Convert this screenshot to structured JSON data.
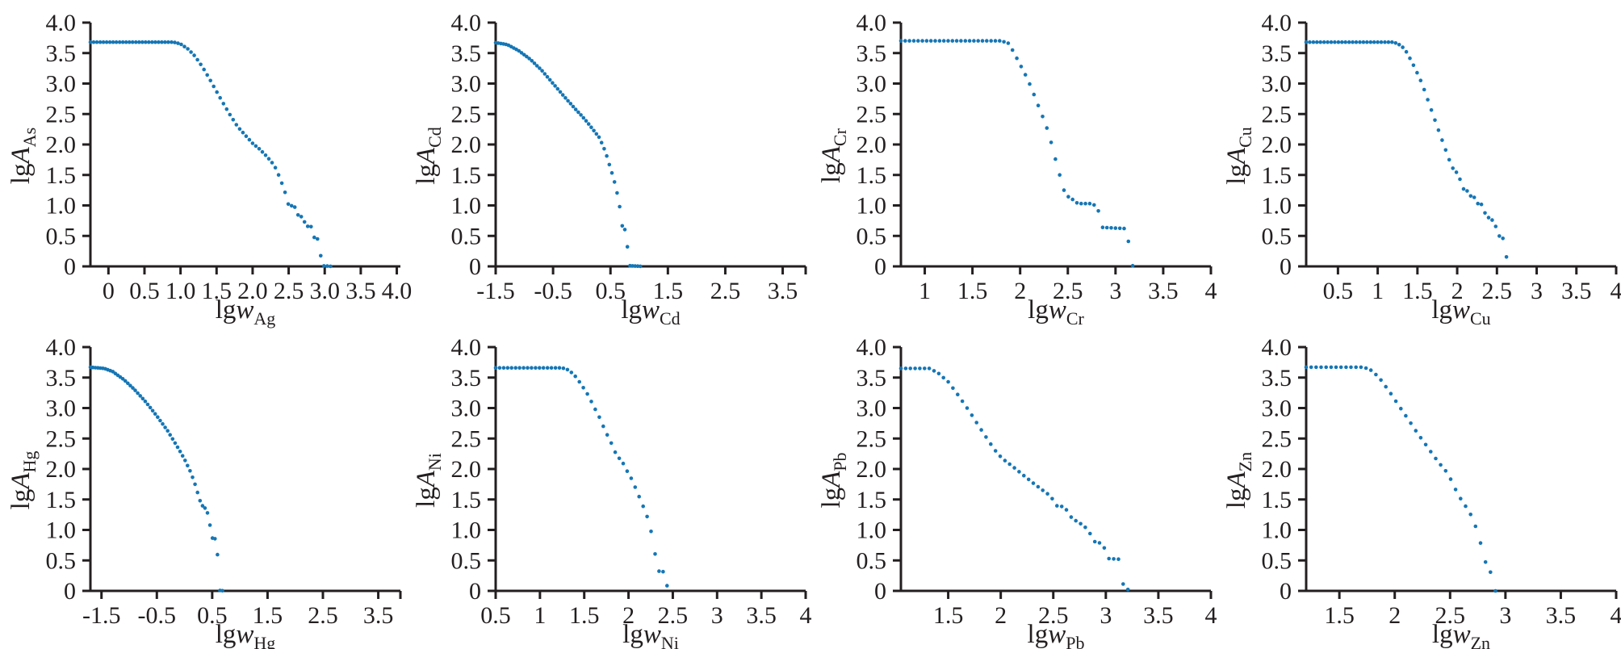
{
  "figure": {
    "description": "Grid of eight scatter plots of logarithmic activity lgA of heavy-metal elements versus logarithmic mass fraction lgw",
    "rows": 2,
    "cols": 4
  },
  "style": {
    "dot_color": "#1576b5",
    "axis_color": "#231f20",
    "text_color": "#231f20",
    "background": "#ffffff"
  },
  "render": {
    "sample_dx": 0.045,
    "dot_radius": 2.3
  },
  "chart_data": [
    {
      "type": "scatter",
      "name": "lgA_As vs lgw_Ag",
      "ylabel": {
        "prefix": "lg",
        "variable": "A",
        "subscript": "As"
      },
      "xlabel": {
        "prefix": "lg",
        "variable": "w",
        "subscript": "Ag"
      },
      "xlim": [
        -0.25,
        4.05
      ],
      "ylim": [
        0,
        4
      ],
      "x_tick_values": [
        0,
        0.5,
        1,
        1.5,
        2,
        2.5,
        3,
        3.5,
        4
      ],
      "x_tick_labels": [
        "0",
        "0.5",
        "1.0",
        "1.5",
        "2.0",
        "2.5",
        "3.0",
        "3.5",
        "4.0"
      ],
      "y_tick_values": [
        0,
        0.5,
        1,
        1.5,
        2,
        2.5,
        3,
        3.5,
        4
      ],
      "y_tick_labels": [
        "0",
        "0.5",
        "1.0",
        "1.5",
        "2.0",
        "2.5",
        "3.0",
        "3.5",
        "4.0"
      ],
      "end_tick": false,
      "points": [
        [
          -0.25,
          3.68
        ],
        [
          0.9,
          3.68
        ],
        [
          1.0,
          3.65
        ],
        [
          1.1,
          3.57
        ],
        [
          1.2,
          3.45
        ],
        [
          1.3,
          3.28
        ],
        [
          1.4,
          3.08
        ],
        [
          1.5,
          2.87
        ],
        [
          1.6,
          2.66
        ],
        [
          1.7,
          2.46
        ],
        [
          1.8,
          2.28
        ],
        [
          1.9,
          2.15
        ],
        [
          2.0,
          2.02
        ],
        [
          2.1,
          1.92
        ],
        [
          2.2,
          1.8
        ],
        [
          2.3,
          1.66
        ],
        [
          2.36,
          1.5
        ],
        [
          2.42,
          1.32
        ],
        [
          2.46,
          1.18
        ],
        [
          2.5,
          1.0
        ],
        [
          2.58,
          0.99
        ],
        [
          2.62,
          0.85
        ],
        [
          2.7,
          0.8
        ],
        [
          2.74,
          0.66
        ],
        [
          2.82,
          0.65
        ],
        [
          2.86,
          0.45
        ],
        [
          2.92,
          0.45
        ],
        [
          2.96,
          0.01
        ],
        [
          3.1,
          0.0
        ]
      ]
    },
    {
      "type": "scatter",
      "name": "lgA_Cd vs lgw_Cd",
      "ylabel": {
        "prefix": "lg",
        "variable": "A",
        "subscript": "Cd"
      },
      "xlabel": {
        "prefix": "lg",
        "variable": "w",
        "subscript": "Cd"
      },
      "xlim": [
        -1.5,
        3.9
      ],
      "ylim": [
        0,
        4
      ],
      "x_tick_values": [
        -1.5,
        -0.5,
        0.5,
        1.5,
        2.5,
        3.5
      ],
      "x_tick_labels": [
        "-1.5",
        "-0.5",
        "0.5",
        "1.5",
        "2.5",
        "3.5"
      ],
      "y_tick_values": [
        0,
        0.5,
        1,
        1.5,
        2,
        2.5,
        3,
        3.5,
        4
      ],
      "y_tick_labels": [
        "0",
        "0.5",
        "1.0",
        "1.5",
        "2.0",
        "2.5",
        "3.0",
        "3.5",
        "4.0"
      ],
      "end_tick": true,
      "points": [
        [
          -1.5,
          3.67
        ],
        [
          -1.3,
          3.64
        ],
        [
          -1.1,
          3.54
        ],
        [
          -0.9,
          3.4
        ],
        [
          -0.7,
          3.22
        ],
        [
          -0.5,
          3.0
        ],
        [
          -0.3,
          2.78
        ],
        [
          -0.1,
          2.57
        ],
        [
          0.0,
          2.47
        ],
        [
          0.1,
          2.36
        ],
        [
          0.2,
          2.24
        ],
        [
          0.3,
          2.12
        ],
        [
          0.36,
          2.0
        ],
        [
          0.42,
          1.86
        ],
        [
          0.47,
          1.7
        ],
        [
          0.52,
          1.55
        ],
        [
          0.56,
          1.42
        ],
        [
          0.6,
          1.28
        ],
        [
          0.63,
          1.13
        ],
        [
          0.66,
          0.98
        ],
        [
          0.69,
          0.8
        ],
        [
          0.71,
          0.62
        ],
        [
          0.76,
          0.6
        ],
        [
          0.78,
          0.33
        ],
        [
          0.82,
          0.31
        ],
        [
          0.84,
          0.01
        ],
        [
          1.05,
          0.0
        ]
      ]
    },
    {
      "type": "scatter",
      "name": "lgA_Cr vs lgw_Cr",
      "ylabel": {
        "prefix": "lg",
        "variable": "A",
        "subscript": "Cr"
      },
      "xlabel": {
        "prefix": "lg",
        "variable": "w",
        "subscript": "Cr"
      },
      "xlim": [
        0.75,
        4.0
      ],
      "ylim": [
        0,
        4
      ],
      "x_tick_values": [
        1,
        1.5,
        2,
        2.5,
        3,
        3.5,
        4
      ],
      "x_tick_labels": [
        "1",
        "1.5",
        "2",
        "2.5",
        "3",
        "3.5",
        "4"
      ],
      "y_tick_values": [
        0,
        0.5,
        1,
        1.5,
        2,
        2.5,
        3,
        3.5,
        4
      ],
      "y_tick_labels": [
        "0",
        "0.5",
        "1.0",
        "1.5",
        "2.0",
        "2.5",
        "3.0",
        "3.5",
        "4.0"
      ],
      "end_tick": false,
      "points": [
        [
          0.75,
          3.7
        ],
        [
          1.8,
          3.7
        ],
        [
          1.88,
          3.66
        ],
        [
          1.92,
          3.55
        ],
        [
          1.97,
          3.4
        ],
        [
          2.02,
          3.25
        ],
        [
          2.07,
          3.1
        ],
        [
          2.12,
          2.92
        ],
        [
          2.17,
          2.72
        ],
        [
          2.22,
          2.52
        ],
        [
          2.27,
          2.32
        ],
        [
          2.31,
          2.12
        ],
        [
          2.34,
          1.95
        ],
        [
          2.37,
          1.76
        ],
        [
          2.4,
          1.58
        ],
        [
          2.43,
          1.42
        ],
        [
          2.46,
          1.25
        ],
        [
          2.49,
          1.15
        ],
        [
          2.53,
          1.13
        ],
        [
          2.58,
          1.05
        ],
        [
          2.62,
          1.03
        ],
        [
          2.76,
          1.03
        ],
        [
          2.8,
          0.97
        ],
        [
          2.83,
          0.88
        ],
        [
          2.86,
          0.64
        ],
        [
          3.1,
          0.62
        ],
        [
          3.15,
          0.32
        ],
        [
          3.18,
          0.01
        ],
        [
          3.22,
          0.0
        ]
      ]
    },
    {
      "type": "scatter",
      "name": "lgA_Cu vs lgw_Cu",
      "ylabel": {
        "prefix": "lg",
        "variable": "A",
        "subscript": "Cu"
      },
      "xlabel": {
        "prefix": "lg",
        "variable": "w",
        "subscript": "Cu"
      },
      "xlim": [
        0.1,
        4.0
      ],
      "ylim": [
        0,
        4
      ],
      "x_tick_values": [
        0.5,
        1,
        1.5,
        2,
        2.5,
        3,
        3.5,
        4
      ],
      "x_tick_labels": [
        "0.5",
        "1",
        "1.5",
        "2",
        "2.5",
        "3",
        "3.5",
        "4"
      ],
      "y_tick_values": [
        0,
        0.5,
        1,
        1.5,
        2,
        2.5,
        3,
        3.5,
        4
      ],
      "y_tick_labels": [
        "0",
        "0.5",
        "1.0",
        "1.5",
        "2.0",
        "2.5",
        "3.0",
        "3.5",
        "4.0"
      ],
      "end_tick": false,
      "points": [
        [
          0.1,
          3.68
        ],
        [
          1.2,
          3.68
        ],
        [
          1.3,
          3.62
        ],
        [
          1.36,
          3.52
        ],
        [
          1.42,
          3.38
        ],
        [
          1.48,
          3.22
        ],
        [
          1.54,
          3.05
        ],
        [
          1.6,
          2.85
        ],
        [
          1.66,
          2.62
        ],
        [
          1.72,
          2.4
        ],
        [
          1.78,
          2.18
        ],
        [
          1.83,
          2.0
        ],
        [
          1.88,
          1.82
        ],
        [
          1.92,
          1.68
        ],
        [
          1.96,
          1.57
        ],
        [
          2.02,
          1.52
        ],
        [
          2.06,
          1.28
        ],
        [
          2.12,
          1.25
        ],
        [
          2.16,
          1.16
        ],
        [
          2.22,
          1.13
        ],
        [
          2.26,
          1.03
        ],
        [
          2.33,
          1.01
        ],
        [
          2.36,
          0.81
        ],
        [
          2.43,
          0.79
        ],
        [
          2.46,
          0.7
        ],
        [
          2.5,
          0.63
        ],
        [
          2.52,
          0.5
        ],
        [
          2.57,
          0.49
        ],
        [
          2.6,
          0.31
        ],
        [
          2.64,
          0.0
        ]
      ]
    },
    {
      "type": "scatter",
      "name": "lgA_Hg vs lgw_Hg",
      "ylabel": {
        "prefix": "lg",
        "variable": "A",
        "subscript": "Hg"
      },
      "xlabel": {
        "prefix": "lg",
        "variable": "w",
        "subscript": "Hg"
      },
      "xlim": [
        -1.7,
        3.9
      ],
      "ylim": [
        0,
        4
      ],
      "x_tick_values": [
        -1.5,
        -0.5,
        0.5,
        1.5,
        2.5,
        3.5
      ],
      "x_tick_labels": [
        "-1.5",
        "-0.5",
        "0.5",
        "1.5",
        "2.5",
        "3.5"
      ],
      "y_tick_values": [
        0,
        0.5,
        1,
        1.5,
        2,
        2.5,
        3,
        3.5,
        4
      ],
      "y_tick_labels": [
        "0",
        "0.5",
        "1.0",
        "1.5",
        "2.0",
        "2.5",
        "3.0",
        "3.5",
        "4.0"
      ],
      "end_tick": true,
      "points": [
        [
          -1.7,
          3.67
        ],
        [
          -1.45,
          3.65
        ],
        [
          -1.3,
          3.6
        ],
        [
          -1.1,
          3.47
        ],
        [
          -0.9,
          3.3
        ],
        [
          -0.7,
          3.1
        ],
        [
          -0.5,
          2.87
        ],
        [
          -0.3,
          2.62
        ],
        [
          -0.1,
          2.32
        ],
        [
          0.0,
          2.16
        ],
        [
          0.1,
          1.97
        ],
        [
          0.18,
          1.78
        ],
        [
          0.24,
          1.6
        ],
        [
          0.28,
          1.48
        ],
        [
          0.32,
          1.4
        ],
        [
          0.38,
          1.35
        ],
        [
          0.42,
          1.27
        ],
        [
          0.45,
          1.16
        ],
        [
          0.47,
          1.0
        ],
        [
          0.49,
          0.87
        ],
        [
          0.57,
          0.85
        ],
        [
          0.59,
          0.79
        ],
        [
          0.61,
          0.01
        ],
        [
          0.72,
          0.0
        ]
      ]
    },
    {
      "type": "scatter",
      "name": "lgA_Ni vs lgw_Ni",
      "ylabel": {
        "prefix": "lg",
        "variable": "A",
        "subscript": "Ni"
      },
      "xlabel": {
        "prefix": "lg",
        "variable": "w",
        "subscript": "Ni"
      },
      "xlim": [
        0.5,
        4.0
      ],
      "ylim": [
        0,
        4
      ],
      "x_tick_values": [
        0.5,
        1,
        1.5,
        2,
        2.5,
        3,
        3.5,
        4
      ],
      "x_tick_labels": [
        "0.5",
        "1",
        "1.5",
        "2",
        "2.5",
        "3",
        "3.5",
        "4"
      ],
      "y_tick_values": [
        0,
        0.5,
        1,
        1.5,
        2,
        2.5,
        3,
        3.5,
        4
      ],
      "y_tick_labels": [
        "0",
        "0.5",
        "1.0",
        "1.5",
        "2.0",
        "2.5",
        "3.0",
        "3.5",
        "4.0"
      ],
      "end_tick": false,
      "points": [
        [
          0.5,
          3.66
        ],
        [
          1.25,
          3.66
        ],
        [
          1.33,
          3.62
        ],
        [
          1.4,
          3.52
        ],
        [
          1.47,
          3.38
        ],
        [
          1.54,
          3.22
        ],
        [
          1.6,
          3.05
        ],
        [
          1.67,
          2.85
        ],
        [
          1.73,
          2.65
        ],
        [
          1.78,
          2.5
        ],
        [
          1.83,
          2.35
        ],
        [
          1.87,
          2.2
        ],
        [
          1.92,
          2.15
        ],
        [
          1.97,
          2.0
        ],
        [
          2.02,
          1.88
        ],
        [
          2.07,
          1.72
        ],
        [
          2.11,
          1.58
        ],
        [
          2.14,
          1.48
        ],
        [
          2.17,
          1.37
        ],
        [
          2.2,
          1.25
        ],
        [
          2.23,
          1.16
        ],
        [
          2.26,
          0.94
        ],
        [
          2.29,
          0.88
        ],
        [
          2.31,
          0.33
        ],
        [
          2.42,
          0.31
        ],
        [
          2.44,
          0.01
        ],
        [
          2.46,
          0.0
        ]
      ]
    },
    {
      "type": "scatter",
      "name": "lgA_Pb vs lgw_Pb",
      "ylabel": {
        "prefix": "lg",
        "variable": "A",
        "subscript": "Pb"
      },
      "xlabel": {
        "prefix": "lg",
        "variable": "w",
        "subscript": "Pb"
      },
      "xlim": [
        1.05,
        4.0
      ],
      "ylim": [
        0,
        4
      ],
      "x_tick_values": [
        1.5,
        2,
        2.5,
        3,
        3.5,
        4
      ],
      "x_tick_labels": [
        "1.5",
        "2",
        "2.5",
        "3",
        "3.5",
        "4"
      ],
      "y_tick_values": [
        0,
        0.5,
        1,
        1.5,
        2,
        2.5,
        3,
        3.5,
        4
      ],
      "y_tick_labels": [
        "0",
        "0.5",
        "1.0",
        "1.5",
        "2.0",
        "2.5",
        "3.0",
        "3.5",
        "4.0"
      ],
      "end_tick": false,
      "points": [
        [
          1.05,
          3.65
        ],
        [
          1.32,
          3.65
        ],
        [
          1.4,
          3.58
        ],
        [
          1.5,
          3.43
        ],
        [
          1.6,
          3.2
        ],
        [
          1.7,
          2.95
        ],
        [
          1.8,
          2.68
        ],
        [
          1.9,
          2.42
        ],
        [
          1.97,
          2.25
        ],
        [
          2.03,
          2.15
        ],
        [
          2.1,
          2.06
        ],
        [
          2.2,
          1.92
        ],
        [
          2.3,
          1.78
        ],
        [
          2.4,
          1.65
        ],
        [
          2.48,
          1.55
        ],
        [
          2.52,
          1.4
        ],
        [
          2.6,
          1.38
        ],
        [
          2.64,
          1.3
        ],
        [
          2.68,
          1.18
        ],
        [
          2.74,
          1.13
        ],
        [
          2.79,
          1.06
        ],
        [
          2.84,
          1.0
        ],
        [
          2.87,
          0.82
        ],
        [
          2.91,
          0.8
        ],
        [
          2.96,
          0.78
        ],
        [
          3.0,
          0.66
        ],
        [
          3.03,
          0.53
        ],
        [
          3.12,
          0.52
        ],
        [
          3.15,
          0.36
        ],
        [
          3.17,
          0.03
        ],
        [
          3.22,
          0.02
        ]
      ]
    },
    {
      "type": "scatter",
      "name": "lgA_Zn vs lgw_Zn",
      "ylabel": {
        "prefix": "lg",
        "variable": "A",
        "subscript": "Zn"
      },
      "xlabel": {
        "prefix": "lg",
        "variable": "w",
        "subscript": "Zn"
      },
      "xlim": [
        1.2,
        4.0
      ],
      "ylim": [
        0,
        4
      ],
      "x_tick_values": [
        1.5,
        2,
        2.5,
        3,
        3.5,
        4
      ],
      "x_tick_labels": [
        "1.5",
        "2",
        "2.5",
        "3",
        "3.5",
        "4"
      ],
      "y_tick_values": [
        0,
        0.5,
        1,
        1.5,
        2,
        2.5,
        3,
        3.5,
        4
      ],
      "y_tick_labels": [
        "0",
        "0.5",
        "1.0",
        "1.5",
        "2.0",
        "2.5",
        "3.0",
        "3.5",
        "4.0"
      ],
      "end_tick": false,
      "points": [
        [
          1.2,
          3.67
        ],
        [
          1.72,
          3.67
        ],
        [
          1.8,
          3.61
        ],
        [
          1.88,
          3.45
        ],
        [
          1.96,
          3.25
        ],
        [
          2.04,
          3.03
        ],
        [
          2.12,
          2.82
        ],
        [
          2.2,
          2.6
        ],
        [
          2.28,
          2.4
        ],
        [
          2.35,
          2.22
        ],
        [
          2.4,
          2.1
        ],
        [
          2.46,
          1.97
        ],
        [
          2.5,
          1.85
        ],
        [
          2.53,
          1.75
        ],
        [
          2.56,
          1.62
        ],
        [
          2.58,
          1.52
        ],
        [
          2.63,
          1.5
        ],
        [
          2.65,
          1.28
        ],
        [
          2.69,
          1.25
        ],
        [
          2.71,
          1.18
        ],
        [
          2.74,
          1.0
        ],
        [
          2.76,
          0.8
        ],
        [
          2.78,
          0.78
        ],
        [
          2.84,
          0.32
        ],
        [
          2.88,
          0.3
        ],
        [
          2.9,
          0.0
        ],
        [
          2.93,
          0.0
        ]
      ]
    }
  ]
}
